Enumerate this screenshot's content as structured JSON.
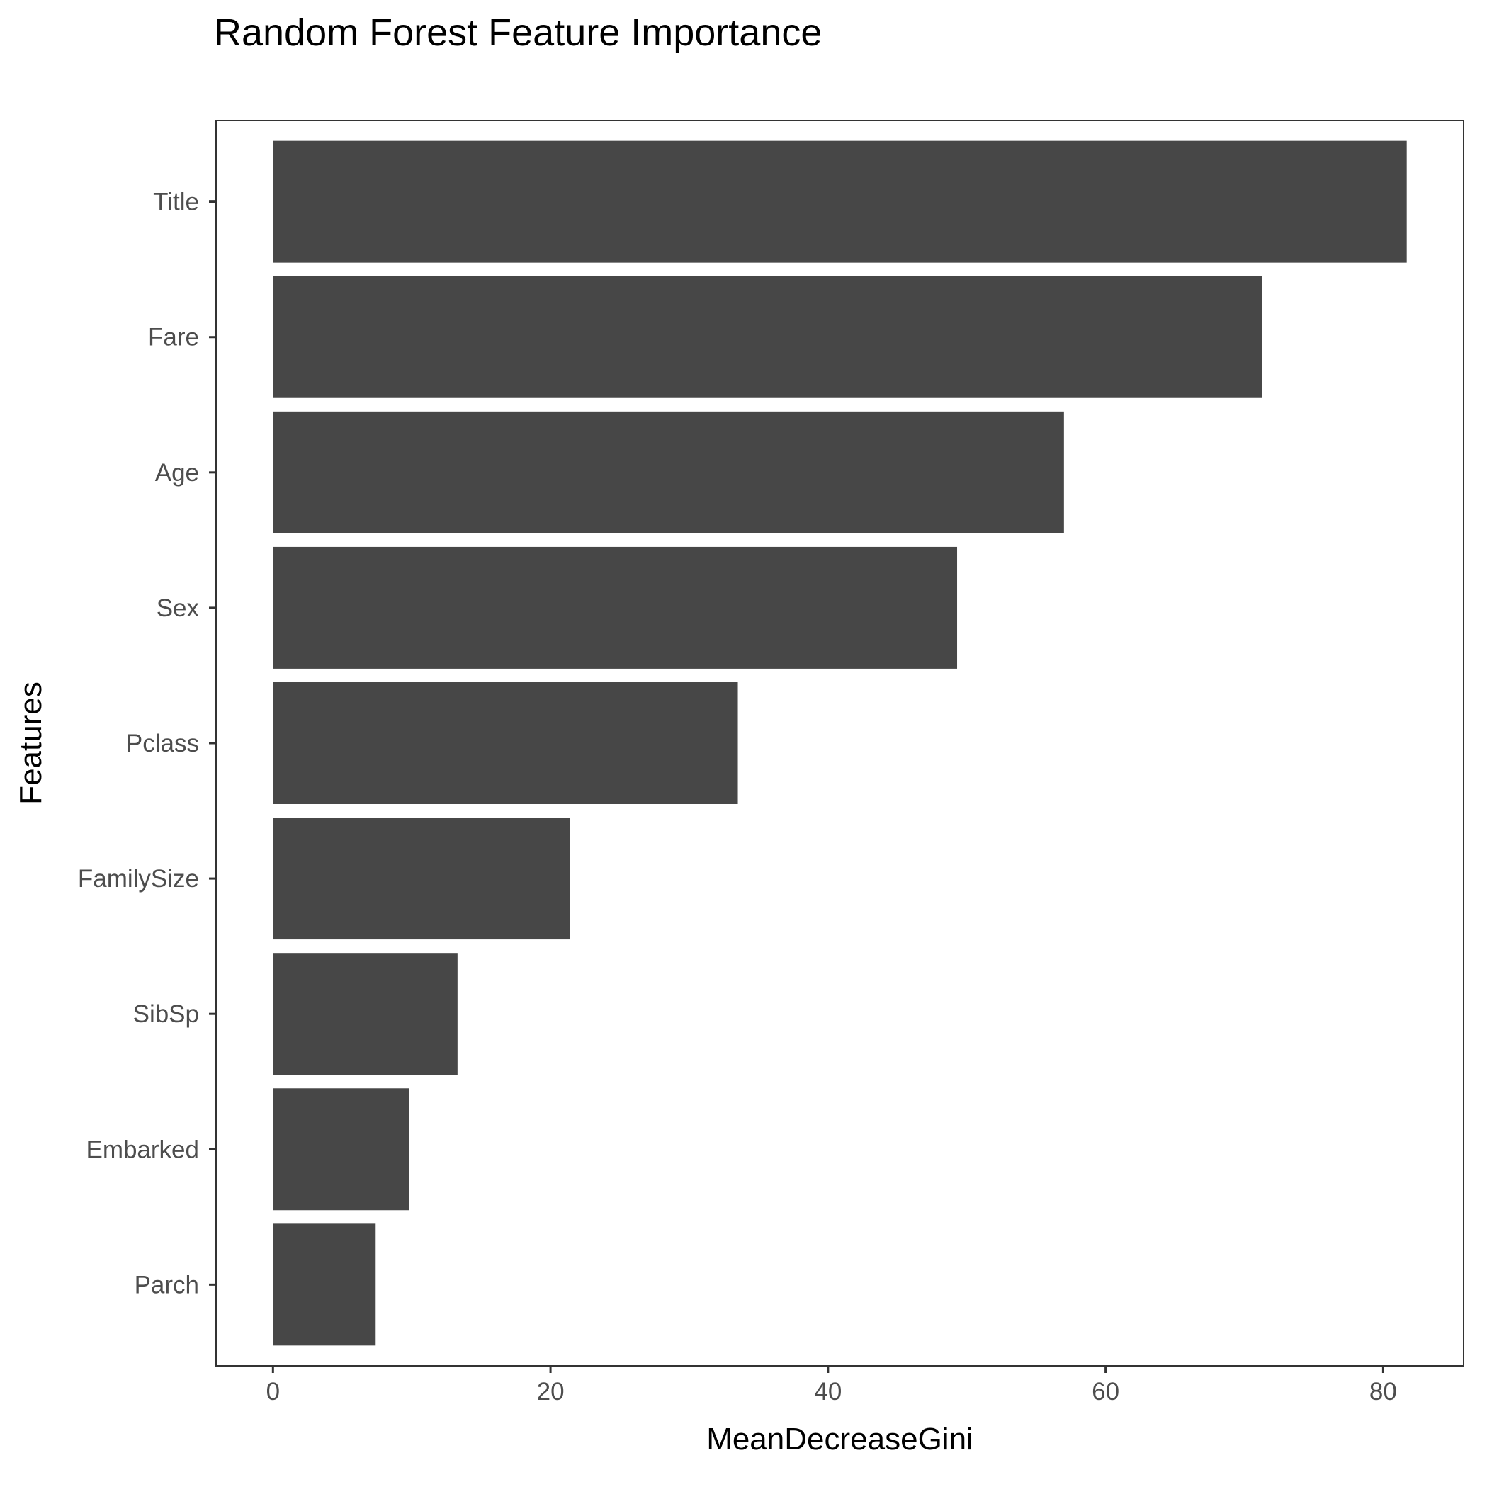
{
  "chart_data": {
    "type": "bar",
    "orientation": "horizontal",
    "title": "Random Forest Feature Importance",
    "xlabel": "MeanDecreaseGini",
    "ylabel": "Features",
    "categories": [
      "Title",
      "Fare",
      "Age",
      "Sex",
      "Pclass",
      "FamilySize",
      "SibSp",
      "Embarked",
      "Parch"
    ],
    "values": [
      81.7,
      71.3,
      57.0,
      49.3,
      33.5,
      21.4,
      13.3,
      9.8,
      7.4
    ],
    "xlim": [
      -4.1,
      85.8
    ],
    "xticks": [
      0,
      20,
      40,
      60,
      80
    ],
    "xtick_labels": [
      "0",
      "20",
      "40",
      "60",
      "80"
    ],
    "grid": false,
    "bar_color": "#474747",
    "panel_border_color": "#333333"
  }
}
